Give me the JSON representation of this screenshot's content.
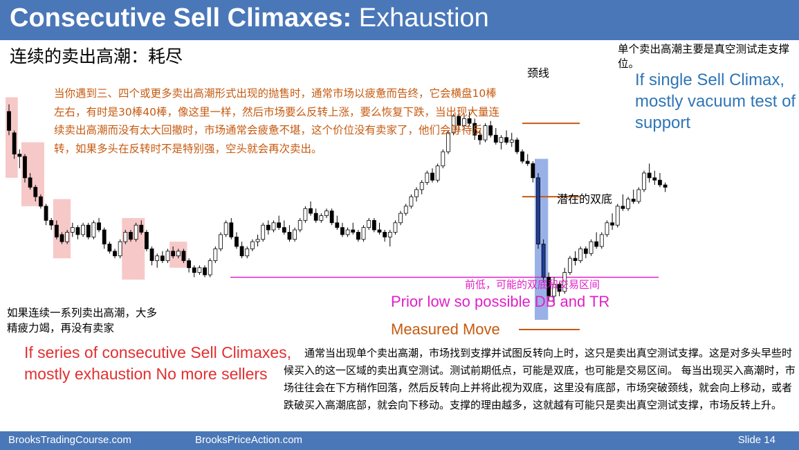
{
  "title": {
    "bold": "Consecutive Sell Climaxes:",
    "rest": "Exhaustion"
  },
  "subtitle_cn": "连续的卖出高潮：耗尽",
  "annotations": {
    "orange_cn": "当你遇到三、四个或更多卖出高潮形式出现的抛售时，通常市场以疲惫而告终，它会横盘10棒左右，有时是30棒40棒，像这里一样，然后市场要么反转上涨，要么恢复下跌，当出现大量连续卖出高潮而没有太大回撤时，市场通常会疲惫不堪，这个价位没有卖家了，他们会等待反转，如果多头在反转时不是特别强，空头就会再次卖出。",
    "top_right_cn": "单个卖出高潮主要是真空测试走支撑位。",
    "top_right_en": "If single Sell Climax, mostly vacuum test of support",
    "neckline": "颈线",
    "potential_db": "潜在的双底",
    "prior_low_cn": "前低，可能的双底和交易区间",
    "prior_low_en": "Prior low so possible DB and TR",
    "measured_move": "Measured Move",
    "left_cn": "如果连续一系列卖出高潮，大多精疲力竭，再没有卖家",
    "left_en": "If series of consecutive Sell Climaxes, mostly exhaustion No more sellers",
    "bottom_cn": "通常当出现单个卖出高潮，市场找到支撑并试图反转向上时，这只是卖出真空测试支撑。这是对多头早些时候买入的这一区域的卖出真空测试。测试前期低点，可能是双底，也可能是交易区间。 每当出现买入高潮时，市场往往会在下方稍作回落，然后反转向上并将此视为双底，这里没有底部，市场突破颈线，就会向上移动，或者跌破买入高潮底部，就会向下移动。支撑的理由越多，这就越有可能只是卖出真空测试支撑，市场反转上升。"
  },
  "footer": {
    "left": "BrooksTradingCourse.com",
    "mid": "BrooksPriceAction.com",
    "slide": "Slide  14"
  },
  "colors": {
    "header": "#4a77b8",
    "bull": "#ffffff",
    "bear": "#000000",
    "climax_box": "#f4b6b6",
    "sell_climax_bar": "#1f3d99",
    "sell_climax_box": "#7f9ee0",
    "prior_low_line": "#e020c8",
    "measured_move": "#c65a10"
  },
  "chart_data": {
    "type": "candlestick",
    "y_range": [
      0,
      100
    ],
    "ohlc": [
      [
        88,
        91,
        78,
        80
      ],
      [
        79,
        80,
        68,
        70
      ],
      [
        70,
        72,
        64,
        69
      ],
      [
        69,
        70,
        58,
        60
      ],
      [
        60,
        62,
        55,
        56
      ],
      [
        56,
        57,
        50,
        52
      ],
      [
        52,
        53,
        47,
        48
      ],
      [
        48,
        49,
        40,
        42
      ],
      [
        42,
        43,
        38,
        40
      ],
      [
        40,
        42,
        34,
        35
      ],
      [
        36,
        37,
        32,
        33
      ],
      [
        33,
        38,
        32,
        37
      ],
      [
        37,
        41,
        35,
        39
      ],
      [
        39,
        40,
        34,
        36
      ],
      [
        36,
        41,
        35,
        40
      ],
      [
        40,
        41,
        34,
        35
      ],
      [
        35,
        42,
        34,
        41
      ],
      [
        41,
        43,
        37,
        38
      ],
      [
        38,
        39,
        30,
        32
      ],
      [
        32,
        33,
        28,
        29
      ],
      [
        29,
        30,
        26,
        27
      ],
      [
        27,
        34,
        26,
        33
      ],
      [
        33,
        38,
        32,
        37
      ],
      [
        37,
        38,
        33,
        34
      ],
      [
        34,
        41,
        33,
        40
      ],
      [
        40,
        42,
        36,
        37
      ],
      [
        37,
        38,
        29,
        30
      ],
      [
        30,
        31,
        23,
        25
      ],
      [
        25,
        28,
        22,
        27
      ],
      [
        27,
        29,
        24,
        25
      ],
      [
        25,
        30,
        24,
        29
      ],
      [
        29,
        31,
        26,
        27
      ],
      [
        27,
        30,
        26,
        29
      ],
      [
        29,
        30,
        24,
        25
      ],
      [
        25,
        26,
        20,
        22
      ],
      [
        22,
        23,
        18,
        20
      ],
      [
        20,
        23,
        19,
        22
      ],
      [
        22,
        23,
        18,
        19
      ],
      [
        19,
        26,
        18,
        25
      ],
      [
        25,
        31,
        24,
        30
      ],
      [
        30,
        37,
        29,
        36
      ],
      [
        36,
        42,
        35,
        41
      ],
      [
        41,
        43,
        34,
        35
      ],
      [
        35,
        37,
        30,
        31
      ],
      [
        31,
        33,
        26,
        27
      ],
      [
        27,
        31,
        26,
        30
      ],
      [
        30,
        34,
        29,
        33
      ],
      [
        33,
        36,
        31,
        34
      ],
      [
        34,
        41,
        33,
        40
      ],
      [
        40,
        42,
        36,
        38
      ],
      [
        38,
        42,
        37,
        41
      ],
      [
        41,
        44,
        38,
        39
      ],
      [
        39,
        42,
        36,
        37
      ],
      [
        37,
        40,
        33,
        34
      ],
      [
        34,
        39,
        33,
        38
      ],
      [
        38,
        43,
        37,
        42
      ],
      [
        42,
        48,
        41,
        47
      ],
      [
        47,
        50,
        44,
        45
      ],
      [
        45,
        47,
        41,
        42
      ],
      [
        42,
        45,
        41,
        44
      ],
      [
        44,
        47,
        43,
        46
      ],
      [
        46,
        47,
        40,
        41
      ],
      [
        41,
        44,
        38,
        39
      ],
      [
        39,
        41,
        35,
        36
      ],
      [
        36,
        39,
        35,
        38
      ],
      [
        38,
        41,
        36,
        37
      ],
      [
        37,
        38,
        33,
        34
      ],
      [
        34,
        40,
        33,
        39
      ],
      [
        39,
        43,
        38,
        42
      ],
      [
        42,
        43,
        37,
        38
      ],
      [
        38,
        41,
        36,
        37
      ],
      [
        37,
        38,
        33,
        35
      ],
      [
        35,
        38,
        31,
        37
      ],
      [
        37,
        42,
        36,
        41
      ],
      [
        41,
        46,
        40,
        45
      ],
      [
        45,
        49,
        44,
        48
      ],
      [
        48,
        53,
        47,
        52
      ],
      [
        52,
        56,
        50,
        55
      ],
      [
        55,
        59,
        53,
        58
      ],
      [
        58,
        63,
        57,
        62
      ],
      [
        62,
        64,
        58,
        59
      ],
      [
        59,
        66,
        58,
        65
      ],
      [
        65,
        72,
        64,
        71
      ],
      [
        71,
        80,
        70,
        79
      ],
      [
        79,
        87,
        78,
        86
      ],
      [
        86,
        88,
        80,
        82
      ],
      [
        82,
        87,
        80,
        85
      ],
      [
        85,
        88,
        82,
        83
      ],
      [
        83,
        85,
        76,
        78
      ],
      [
        78,
        80,
        74,
        76
      ],
      [
        76,
        83,
        75,
        82
      ],
      [
        82,
        84,
        77,
        78
      ],
      [
        78,
        81,
        74,
        75
      ],
      [
        75,
        78,
        72,
        77
      ],
      [
        77,
        80,
        74,
        75
      ],
      [
        75,
        79,
        73,
        76
      ],
      [
        76,
        77,
        70,
        71
      ],
      [
        71,
        72,
        66,
        67
      ],
      [
        67,
        70,
        65,
        66
      ],
      [
        66,
        67,
        58,
        60
      ],
      [
        60,
        62,
        30,
        32
      ],
      [
        32,
        34,
        16,
        18
      ],
      [
        18,
        20,
        8,
        10
      ],
      [
        10,
        18,
        6,
        15
      ],
      [
        15,
        16,
        10,
        12
      ],
      [
        12,
        22,
        11,
        20
      ],
      [
        20,
        27,
        19,
        26
      ],
      [
        26,
        29,
        23,
        25
      ],
      [
        25,
        31,
        24,
        30
      ],
      [
        30,
        31,
        26,
        28
      ],
      [
        28,
        34,
        27,
        33
      ],
      [
        33,
        37,
        30,
        31
      ],
      [
        31,
        37,
        30,
        36
      ],
      [
        36,
        42,
        35,
        41
      ],
      [
        41,
        45,
        38,
        40
      ],
      [
        40,
        49,
        39,
        48
      ],
      [
        48,
        53,
        46,
        47
      ],
      [
        47,
        52,
        46,
        51
      ],
      [
        51,
        55,
        49,
        50
      ],
      [
        50,
        56,
        49,
        55
      ],
      [
        55,
        63,
        54,
        62
      ],
      [
        62,
        66,
        58,
        60
      ],
      [
        60,
        63,
        57,
        59
      ],
      [
        59,
        62,
        56,
        57
      ],
      [
        57,
        58,
        54,
        56
      ]
    ],
    "price_levels": {
      "neckline": 83,
      "potential_double_bottom": 52,
      "prior_low": 18
    }
  }
}
